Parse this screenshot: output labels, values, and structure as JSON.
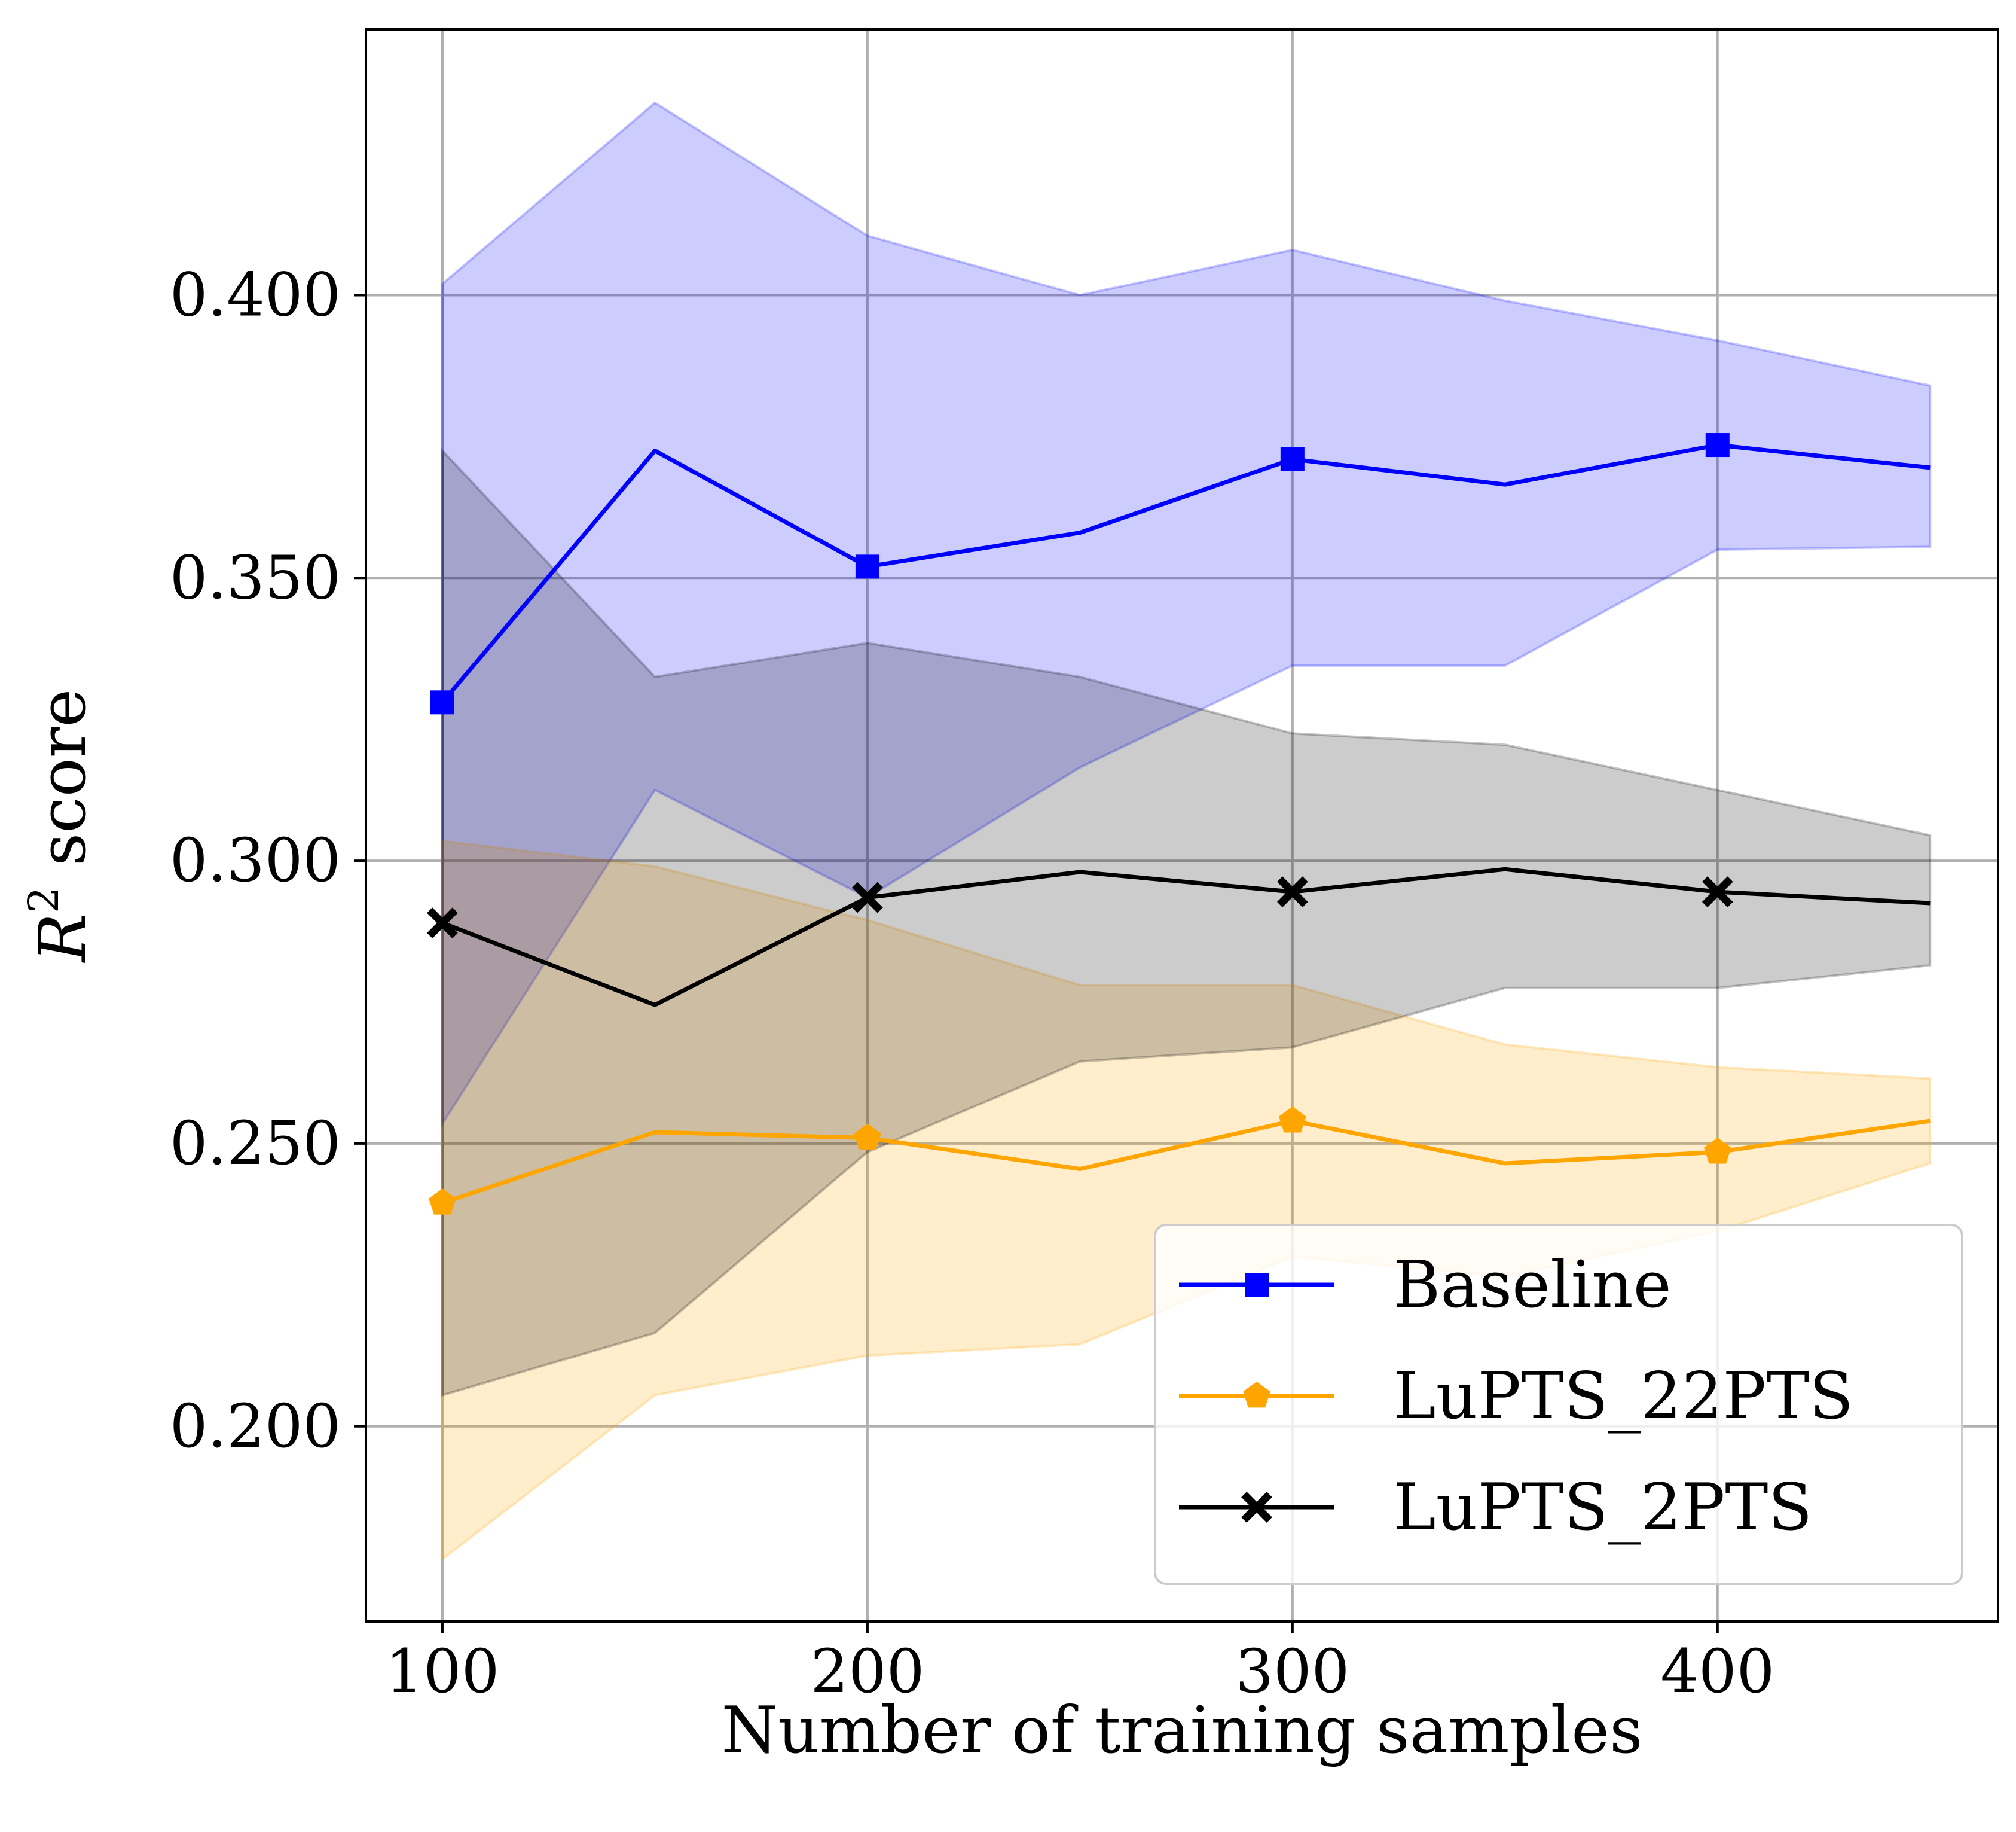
{
  "chart_data": {
    "type": "line",
    "title": "",
    "xlabel": "Number of training samples",
    "ylabel": {
      "main": "R",
      "superscript": "2",
      "rest": " score"
    },
    "xlim": [
      82,
      466
    ],
    "ylim": [
      0.1655,
      0.447
    ],
    "xticks": [
      100,
      200,
      300,
      400
    ],
    "xtick_labels": [
      "100",
      "200",
      "300",
      "400"
    ],
    "yticks": [
      0.2,
      0.25,
      0.3,
      0.35,
      0.4
    ],
    "ytick_labels": [
      "0.200",
      "0.250",
      "0.300",
      "0.350",
      "0.400"
    ],
    "grid": true,
    "legend_position": "lower-right",
    "x": [
      100,
      150,
      200,
      250,
      300,
      350,
      400,
      450
    ],
    "series": [
      {
        "name": "Baseline",
        "color": "#0000ff",
        "band_color": "#0000ff",
        "marker": "square",
        "marker_every": 2,
        "values": [
          0.328,
          0.3725,
          0.352,
          0.358,
          0.371,
          0.3665,
          0.3735,
          0.3695
        ],
        "upper": [
          0.402,
          0.434,
          0.4105,
          0.4,
          0.408,
          0.399,
          0.392,
          0.384
        ],
        "lower": [
          0.2535,
          0.3125,
          0.2935,
          0.3165,
          0.3345,
          0.3345,
          0.355,
          0.3555
        ]
      },
      {
        "name": "LuPTS_22PTS",
        "color": "#ffa500",
        "band_color": "#ffa500",
        "marker": "pentagon",
        "marker_every": 2,
        "values": [
          0.2395,
          0.252,
          0.251,
          0.2455,
          0.254,
          0.2465,
          0.2485,
          0.254
        ],
        "upper": [
          0.3035,
          0.299,
          0.2895,
          0.278,
          0.278,
          0.2675,
          0.2635,
          0.2615
        ],
        "lower": [
          0.1765,
          0.2055,
          0.2125,
          0.2145,
          0.23,
          0.2265,
          0.2345,
          0.2465
        ]
      },
      {
        "name": "LuPTS_2PTS",
        "color": "#000000",
        "band_color": "#000000",
        "marker": "x",
        "marker_every": 2,
        "values": [
          0.289,
          0.2745,
          0.2935,
          0.298,
          0.2945,
          0.2985,
          0.2945,
          0.2925
        ],
        "upper": [
          0.3725,
          0.3325,
          0.3385,
          0.3325,
          0.3225,
          0.3205,
          0.3125,
          0.3045
        ],
        "lower": [
          0.2055,
          0.2165,
          0.2485,
          0.2645,
          0.267,
          0.2775,
          0.2775,
          0.2815
        ]
      }
    ]
  }
}
